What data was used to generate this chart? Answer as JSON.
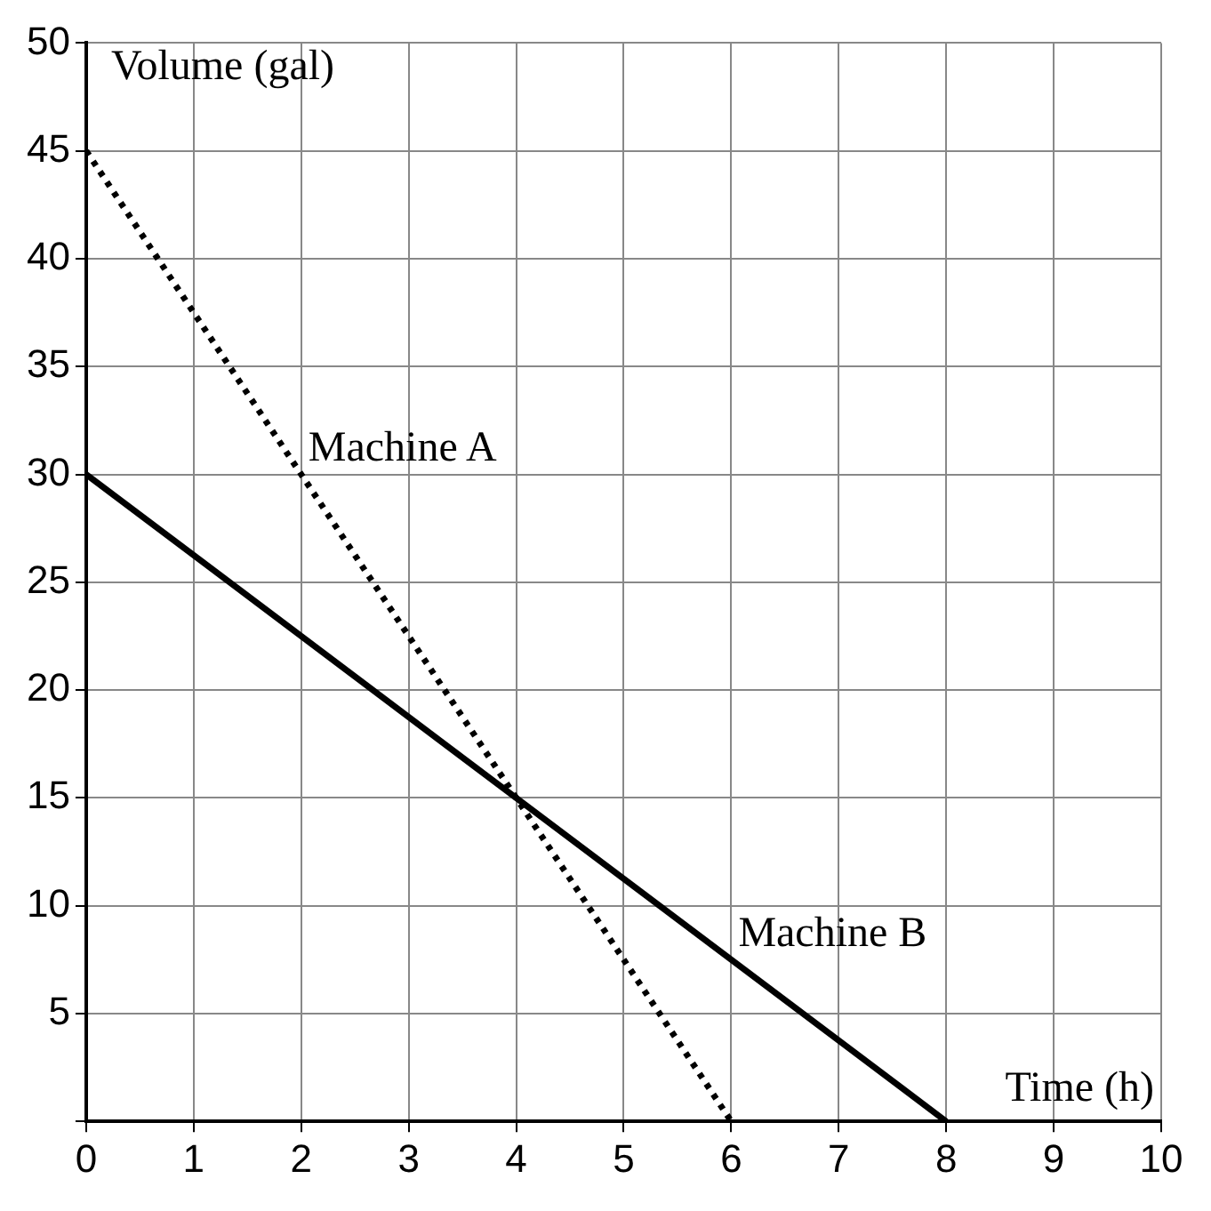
{
  "chart_data": {
    "type": "line",
    "xlabel": "Time (h)",
    "ylabel": "Volume (gal)",
    "xlim": [
      0,
      10
    ],
    "xticks": [
      0,
      1,
      2,
      3,
      4,
      5,
      6,
      7,
      8,
      9,
      10
    ],
    "ylim": [
      0,
      50
    ],
    "yticks": [
      {
        "value": 0,
        "label": null
      },
      5,
      10,
      15,
      20,
      25,
      30,
      35,
      40,
      45,
      50
    ],
    "grid": true,
    "legend": false,
    "marker": "none",
    "series": [
      {
        "name": "Machine A",
        "color": "#000000",
        "x": [
          0,
          6
        ],
        "values": [
          45,
          0
        ],
        "line_style": "dotted"
      },
      {
        "name": "Machine B",
        "color": "#000000",
        "x": [
          0,
          8
        ],
        "values": [
          30,
          0
        ],
        "line_style": "solid"
      }
    ]
  }
}
